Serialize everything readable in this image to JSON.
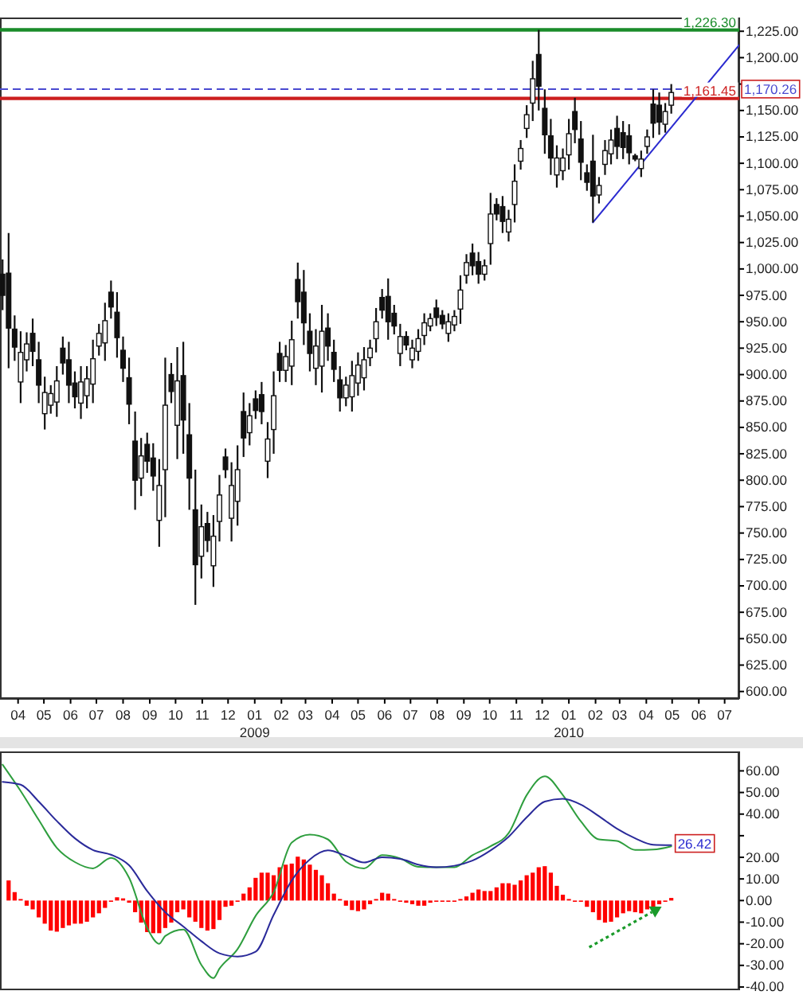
{
  "chart_data": [
    {
      "type": "candlestick",
      "color": "#111111",
      "x": [
        "2008-03-14",
        "2008-03-21",
        "2008-03-28",
        "2008-04-04",
        "2008-04-11",
        "2008-04-18",
        "2008-04-25",
        "2008-05-02",
        "2008-05-09",
        "2008-05-16",
        "2008-05-23",
        "2008-05-30",
        "2008-06-06",
        "2008-06-13",
        "2008-06-20",
        "2008-06-27",
        "2008-07-04",
        "2008-07-11",
        "2008-07-18",
        "2008-07-25",
        "2008-08-01",
        "2008-08-08",
        "2008-08-15",
        "2008-08-22",
        "2008-08-29",
        "2008-09-05",
        "2008-09-12",
        "2008-09-19",
        "2008-09-26",
        "2008-10-03",
        "2008-10-10",
        "2008-10-17",
        "2008-10-24",
        "2008-10-31",
        "2008-11-07",
        "2008-11-14",
        "2008-11-21",
        "2008-11-28",
        "2008-12-05",
        "2008-12-12",
        "2008-12-19",
        "2008-12-26",
        "2009-01-02",
        "2009-01-09",
        "2009-01-16",
        "2009-01-23",
        "2009-01-30",
        "2009-02-06",
        "2009-02-13",
        "2009-02-20",
        "2009-02-27",
        "2009-03-06",
        "2009-03-13",
        "2009-03-20",
        "2009-03-27",
        "2009-04-03",
        "2009-04-10",
        "2009-04-17",
        "2009-04-24",
        "2009-05-01",
        "2009-05-08",
        "2009-05-15",
        "2009-05-22",
        "2009-05-29",
        "2009-06-05",
        "2009-06-12",
        "2009-06-19",
        "2009-06-26",
        "2009-07-03",
        "2009-07-10",
        "2009-07-17",
        "2009-07-24",
        "2009-07-31",
        "2009-08-07",
        "2009-08-14",
        "2009-08-21",
        "2009-08-28",
        "2009-09-04",
        "2009-09-11",
        "2009-09-18",
        "2009-09-25",
        "2009-10-02",
        "2009-10-09",
        "2009-10-16",
        "2009-10-23",
        "2009-10-30",
        "2009-11-06",
        "2009-11-13",
        "2009-11-20",
        "2009-11-27",
        "2009-12-04",
        "2009-12-11",
        "2009-12-18",
        "2009-12-25",
        "2010-01-01",
        "2010-01-08",
        "2010-01-15",
        "2010-01-22",
        "2010-01-29",
        "2010-02-05",
        "2010-02-12",
        "2010-02-19",
        "2010-02-26",
        "2010-03-05",
        "2010-03-12",
        "2010-03-19",
        "2010-03-26",
        "2010-04-02",
        "2010-04-09",
        "2010-04-16",
        "2010-04-23",
        "2010-04-30"
      ],
      "ohlc": [
        [
          995,
          1009,
          961,
          975
        ],
        [
          996,
          1034,
          906,
          944
        ],
        [
          943,
          956,
          913,
          926
        ],
        [
          893,
          941,
          873,
          921
        ],
        [
          914,
          940,
          903,
          929
        ],
        [
          939,
          953,
          908,
          922
        ],
        [
          914,
          931,
          873,
          890
        ],
        [
          863,
          898,
          848,
          883
        ],
        [
          871,
          890,
          863,
          882
        ],
        [
          874,
          908,
          860,
          894
        ],
        [
          925,
          936,
          900,
          911
        ],
        [
          914,
          931,
          873,
          890
        ],
        [
          892,
          903,
          868,
          879
        ],
        [
          873,
          908,
          858,
          893
        ],
        [
          880,
          908,
          868,
          896
        ],
        [
          891,
          933,
          873,
          915
        ],
        [
          927,
          948,
          918,
          939
        ],
        [
          930,
          968,
          913,
          951
        ],
        [
          978,
          989,
          953,
          964
        ],
        [
          959,
          978,
          916,
          935
        ],
        [
          923,
          936,
          893,
          906
        ],
        [
          897,
          916,
          853,
          872
        ],
        [
          837,
          865,
          772,
          800
        ],
        [
          802,
          840,
          785,
          823
        ],
        [
          834,
          845,
          807,
          818
        ],
        [
          821,
          835,
          790,
          804
        ],
        [
          762,
          820,
          737,
          795
        ],
        [
          810,
          916,
          765,
          871
        ],
        [
          900,
          911,
          873,
          884
        ],
        [
          852,
          926,
          820,
          894
        ],
        [
          899,
          931,
          825,
          857
        ],
        [
          843,
          873,
          772,
          802
        ],
        [
          772,
          810,
          682,
          720
        ],
        [
          728,
          777,
          707,
          756
        ],
        [
          759,
          770,
          732,
          743
        ],
        [
          719,
          767,
          699,
          747
        ],
        [
          761,
          805,
          742,
          786
        ],
        [
          822,
          830,
          802,
          810
        ],
        [
          764,
          817,
          742,
          795
        ],
        [
          780,
          833,
          757,
          810
        ],
        [
          865,
          883,
          822,
          840
        ],
        [
          845,
          873,
          833,
          861
        ],
        [
          877,
          885,
          858,
          866
        ],
        [
          881,
          893,
          853,
          865
        ],
        [
          818,
          855,
          802,
          839
        ],
        [
          848,
          903,
          825,
          880
        ],
        [
          920,
          931,
          893,
          904
        ],
        [
          904,
          928,
          893,
          917
        ],
        [
          908,
          951,
          890,
          933
        ],
        [
          990,
          1006,
          953,
          969
        ],
        [
          978,
          999,
          928,
          949
        ],
        [
          941,
          958,
          903,
          920
        ],
        [
          906,
          943,
          890,
          927
        ],
        [
          908,
          966,
          883,
          941
        ],
        [
          944,
          958,
          913,
          927
        ],
        [
          921,
          933,
          893,
          905
        ],
        [
          895,
          908,
          865,
          878
        ],
        [
          878,
          898,
          870,
          890
        ],
        [
          879,
          913,
          865,
          899
        ],
        [
          892,
          921,
          880,
          909
        ],
        [
          897,
          926,
          885,
          914
        ],
        [
          916,
          933,
          908,
          925
        ],
        [
          934,
          963,
          921,
          950
        ],
        [
          973,
          981,
          953,
          961
        ],
        [
          974,
          991,
          933,
          950
        ],
        [
          958,
          966,
          938,
          946
        ],
        [
          920,
          948,
          908,
          936
        ],
        [
          936,
          941,
          923,
          928
        ],
        [
          914,
          933,
          906,
          925
        ],
        [
          922,
          943,
          913,
          934
        ],
        [
          937,
          958,
          928,
          949
        ],
        [
          946,
          958,
          941,
          953
        ],
        [
          963,
          971,
          946,
          954
        ],
        [
          956,
          961,
          943,
          948
        ],
        [
          939,
          958,
          931,
          950
        ],
        [
          947,
          961,
          941,
          955
        ],
        [
          962,
          994,
          948,
          980
        ],
        [
          994,
          1014,
          986,
          1006
        ],
        [
          1015,
          1024,
          994,
          1003
        ],
        [
          1007,
          1016,
          986,
          995
        ],
        [
          995,
          1009,
          989,
          1003
        ],
        [
          1024,
          1072,
          1004,
          1052
        ],
        [
          1061,
          1067,
          1046,
          1052
        ],
        [
          1059,
          1069,
          1034,
          1045
        ],
        [
          1035,
          1056,
          1026,
          1047
        ],
        [
          1061,
          1099,
          1044,
          1083
        ],
        [
          1102,
          1122,
          1094,
          1114
        ],
        [
          1133,
          1155,
          1124,
          1146
        ],
        [
          1157,
          1197,
          1140,
          1180
        ],
        [
          1203,
          1226.3,
          1150,
          1173
        ],
        [
          1152,
          1170,
          1109,
          1127
        ],
        [
          1126,
          1142,
          1089,
          1105
        ],
        [
          1089,
          1117,
          1077,
          1105
        ],
        [
          1093,
          1114,
          1084,
          1105
        ],
        [
          1108,
          1142,
          1094,
          1128
        ],
        [
          1149,
          1162,
          1119,
          1132
        ],
        [
          1123,
          1140,
          1084,
          1101
        ],
        [
          1091,
          1099,
          1074,
          1082
        ],
        [
          1102,
          1127,
          1044,
          1069
        ],
        [
          1070,
          1087,
          1062,
          1079
        ],
        [
          1099,
          1122,
          1089,
          1112
        ],
        [
          1109,
          1132,
          1099,
          1122
        ],
        [
          1133,
          1145,
          1104,
          1116
        ],
        [
          1129,
          1140,
          1104,
          1115
        ],
        [
          1126,
          1137,
          1099,
          1110
        ],
        [
          1107,
          1109,
          1102,
          1104
        ],
        [
          1095,
          1112,
          1087,
          1104
        ],
        [
          1116,
          1132,
          1109,
          1125
        ],
        [
          1156,
          1170,
          1124,
          1138
        ],
        [
          1155,
          1167,
          1127,
          1139
        ],
        [
          1137,
          1157,
          1129,
          1149
        ],
        [
          1155,
          1175,
          1147,
          1167
        ]
      ],
      "series": [
        {
          "type": "line",
          "color": "#2b2bd0",
          "x": [
            "2010-01-29",
            "2010-07-18"
          ],
          "values": [
            1044,
            1212
          ]
        }
      ],
      "xlim": [
        "2008-03-11",
        "2010-07-18"
      ],
      "xticks": [
        {
          "value": "2008-04-01",
          "label": "04"
        },
        {
          "value": "2008-05-01",
          "label": "05"
        },
        {
          "value": "2008-06-01",
          "label": "06"
        },
        {
          "value": "2008-07-01",
          "label": "07"
        },
        {
          "value": "2008-08-01",
          "label": "08"
        },
        {
          "value": "2008-09-01",
          "label": "09"
        },
        {
          "value": "2008-10-01",
          "label": "10"
        },
        {
          "value": "2008-11-01",
          "label": "11"
        },
        {
          "value": "2008-12-01",
          "label": "12"
        },
        {
          "value": "2009-01-01",
          "label": "01\n2009"
        },
        {
          "value": "2009-02-01",
          "label": "02"
        },
        {
          "value": "2009-03-01",
          "label": "03"
        },
        {
          "value": "2009-04-01",
          "label": "04"
        },
        {
          "value": "2009-05-01",
          "label": "05"
        },
        {
          "value": "2009-06-01",
          "label": "06"
        },
        {
          "value": "2009-07-01",
          "label": "07"
        },
        {
          "value": "2009-08-01",
          "label": "08"
        },
        {
          "value": "2009-09-01",
          "label": "09"
        },
        {
          "value": "2009-10-01",
          "label": "10"
        },
        {
          "value": "2009-11-01",
          "label": "11"
        },
        {
          "value": "2009-12-01",
          "label": "12"
        },
        {
          "value": "2010-01-01",
          "label": "01\n2010"
        },
        {
          "value": "2010-02-01",
          "label": "02"
        },
        {
          "value": "2010-03-01",
          "label": "03"
        },
        {
          "value": "2010-04-01",
          "label": "04"
        },
        {
          "value": "2010-05-01",
          "label": "05"
        },
        {
          "value": "2010-06-01",
          "label": "06"
        },
        {
          "value": "2010-07-01",
          "label": "07"
        }
      ],
      "ylim": [
        593,
        1238
      ],
      "yticks": [
        {
          "value": 600,
          "label": "600.00"
        },
        {
          "value": 625,
          "label": "625.00"
        },
        {
          "value": 650,
          "label": "650.00"
        },
        {
          "value": 675,
          "label": "675.00"
        },
        {
          "value": 700,
          "label": "700.00"
        },
        {
          "value": 725,
          "label": "725.00"
        },
        {
          "value": 750,
          "label": "750.00"
        },
        {
          "value": 775,
          "label": "775.00"
        },
        {
          "value": 800,
          "label": "800.00"
        },
        {
          "value": 825,
          "label": "825.00"
        },
        {
          "value": 850,
          "label": "850.00"
        },
        {
          "value": 875,
          "label": "875.00"
        },
        {
          "value": 900,
          "label": "900.00"
        },
        {
          "value": 925,
          "label": "925.00"
        },
        {
          "value": 950,
          "label": "950.00"
        },
        {
          "value": 975,
          "label": "975.00"
        },
        {
          "value": 1000,
          "label": "1,000.00"
        },
        {
          "value": 1025,
          "label": "1,025.00"
        },
        {
          "value": 1050,
          "label": "1,050.00"
        },
        {
          "value": 1075,
          "label": "1,075.00"
        },
        {
          "value": 1100,
          "label": "1,100.00"
        },
        {
          "value": 1125,
          "label": "1,125.00"
        },
        {
          "value": 1150,
          "label": "1,150.00"
        },
        {
          "value": 1175,
          "label": null
        },
        {
          "value": 1200,
          "label": "1,200.00"
        },
        {
          "value": 1225,
          "label": "1,225.00"
        }
      ],
      "ref_lines": [
        {
          "axis": "y",
          "value": 1226.3,
          "label": "1,226.30",
          "color": "#1a8c2a"
        },
        {
          "axis": "y",
          "value": 1161.45,
          "label": "1,161.45",
          "color": "#cc1f1f"
        },
        {
          "axis": "y",
          "value": 1170.26,
          "label": "1,170.26",
          "color": "#4a4ad0",
          "line_style": "dashed"
        }
      ]
    },
    {
      "type": "bar",
      "tick_labels": "y",
      "xlim": [
        "2008-03-11",
        "2010-07-18"
      ],
      "ylim": [
        -41.5,
        69
      ],
      "yticks": [
        {
          "value": -40,
          "label": "-40.00"
        },
        {
          "value": -30,
          "label": "-30.00"
        },
        {
          "value": -20,
          "label": "-20.00"
        },
        {
          "value": -10,
          "label": "-10.00"
        },
        {
          "value": 0,
          "label": "0.00"
        },
        {
          "value": 10,
          "label": "10.00"
        },
        {
          "value": 20,
          "label": "20.00"
        },
        {
          "value": 30,
          "label": null
        },
        {
          "value": 40,
          "label": "40.00"
        },
        {
          "value": 50,
          "label": "50.00"
        },
        {
          "value": 60,
          "label": "60.00"
        }
      ],
      "series": [
        {
          "type": "bar",
          "color": "#ff0000",
          "x": [
            "2008-03-21",
            "2008-03-28",
            "2008-04-04",
            "2008-04-11",
            "2008-04-18",
            "2008-04-25",
            "2008-05-02",
            "2008-05-09",
            "2008-05-16",
            "2008-05-23",
            "2008-05-30",
            "2008-06-06",
            "2008-06-13",
            "2008-06-20",
            "2008-06-27",
            "2008-07-04",
            "2008-07-11",
            "2008-07-18",
            "2008-07-25",
            "2008-08-01",
            "2008-08-08",
            "2008-08-15",
            "2008-08-22",
            "2008-08-29",
            "2008-09-05",
            "2008-09-12",
            "2008-09-19",
            "2008-09-26",
            "2008-10-03",
            "2008-10-10",
            "2008-10-17",
            "2008-10-24",
            "2008-10-31",
            "2008-11-07",
            "2008-11-14",
            "2008-11-21",
            "2008-11-28",
            "2008-12-05",
            "2008-12-12",
            "2008-12-19",
            "2008-12-26",
            "2009-01-02",
            "2009-01-09",
            "2009-01-16",
            "2009-01-23",
            "2009-01-30",
            "2009-02-06",
            "2009-02-13",
            "2009-02-20",
            "2009-02-27",
            "2009-03-06",
            "2009-03-13",
            "2009-03-20",
            "2009-03-27",
            "2009-04-03",
            "2009-04-10",
            "2009-04-17",
            "2009-04-24",
            "2009-05-01",
            "2009-05-08",
            "2009-05-15",
            "2009-05-22",
            "2009-05-29",
            "2009-06-05",
            "2009-06-12",
            "2009-06-19",
            "2009-06-26",
            "2009-07-03",
            "2009-07-10",
            "2009-07-17",
            "2009-07-24",
            "2009-07-31",
            "2009-08-07",
            "2009-08-14",
            "2009-08-21",
            "2009-08-28",
            "2009-09-04",
            "2009-09-11",
            "2009-09-18",
            "2009-09-25",
            "2009-10-02",
            "2009-10-09",
            "2009-10-16",
            "2009-10-23",
            "2009-10-30",
            "2009-11-06",
            "2009-11-13",
            "2009-11-20",
            "2009-11-27",
            "2009-12-04",
            "2009-12-11",
            "2009-12-18",
            "2009-12-25",
            "2010-01-01",
            "2010-01-08",
            "2010-01-15",
            "2010-01-22",
            "2010-01-29",
            "2010-02-05",
            "2010-02-12",
            "2010-02-19",
            "2010-02-26",
            "2010-03-05",
            "2010-03-12",
            "2010-03-19",
            "2010-03-26",
            "2010-04-02",
            "2010-04-09",
            "2010-04-16",
            "2010-04-23",
            "2010-04-30"
          ],
          "values": [
            9.3,
            3.9,
            0.7,
            -2.4,
            -4.1,
            -7.8,
            -10.7,
            -13.9,
            -14.4,
            -12.7,
            -11.5,
            -10.7,
            -10.7,
            -9.8,
            -7.8,
            -5.9,
            -3.4,
            -0.5,
            1.5,
            1,
            -1,
            -5.4,
            -10.2,
            -14.6,
            -15.1,
            -15.1,
            -12.7,
            -10.2,
            -5.4,
            -4.1,
            -7.8,
            -9.8,
            -12.7,
            -13.9,
            -13.2,
            -9,
            -2.9,
            -2.4,
            -0.5,
            3.2,
            6.1,
            10.5,
            12.9,
            12.9,
            11.7,
            15.4,
            16.6,
            17.1,
            20.3,
            19,
            16.6,
            14.2,
            11.7,
            8,
            3.2,
            0.7,
            -2.4,
            -4.4,
            -4.9,
            -4.1,
            -1.7,
            0.7,
            3.6,
            3.2,
            0.7,
            -0.5,
            -1,
            -1.7,
            -2.4,
            -2.4,
            -1,
            -0.5,
            -0.5,
            -0.5,
            -0.5,
            0.7,
            1.9,
            3.6,
            5.1,
            4.4,
            4.4,
            6.1,
            8,
            8,
            7.3,
            9.3,
            11.7,
            12.9,
            15.4,
            15.9,
            12.9,
            6.8,
            2.7,
            0.7,
            0,
            -0.5,
            -2.9,
            -5.4,
            -9,
            -10.2,
            -9.8,
            -7.8,
            -5.9,
            -4.9,
            -5.4,
            -5.9,
            -4.1,
            -2.9,
            -1.7,
            -0.5,
            1.2
          ]
        },
        {
          "type": "line",
          "color": "#2e9e3e",
          "x": [
            "2008-03-14",
            "2008-04-04",
            "2008-04-25",
            "2008-05-16",
            "2008-06-06",
            "2008-06-27",
            "2008-07-18",
            "2008-08-08",
            "2008-08-29",
            "2008-09-12",
            "2008-09-19",
            "2008-10-10",
            "2008-10-31",
            "2008-11-14",
            "2008-11-21",
            "2008-12-12",
            "2009-01-02",
            "2009-01-23",
            "2009-02-13",
            "2009-03-06",
            "2009-03-27",
            "2009-04-17",
            "2009-05-08",
            "2009-05-29",
            "2009-06-19",
            "2009-07-10",
            "2009-07-31",
            "2009-08-21",
            "2009-09-11",
            "2009-10-02",
            "2009-10-23",
            "2009-11-13",
            "2009-12-04",
            "2009-12-25",
            "2010-01-15",
            "2010-02-05",
            "2010-02-26",
            "2010-03-19",
            "2010-04-09",
            "2010-04-30"
          ],
          "values": [
            62.9,
            50.7,
            37.3,
            24.4,
            17.8,
            14.9,
            19.7,
            10.5,
            -12.7,
            -20,
            -16.4,
            -13.4,
            -29.8,
            -35.9,
            -31.5,
            -22.5,
            -7.1,
            3.9,
            26.8,
            30.5,
            28.3,
            18,
            14.9,
            21,
            19.5,
            15.6,
            15.4,
            15.4,
            21,
            25.1,
            31.2,
            48.8,
            57.5,
            48.8,
            36.6,
            28.3,
            27.6,
            23.4,
            23.6,
            25.1
          ]
        },
        {
          "type": "line",
          "color": "#2a2a9a",
          "x": [
            "2008-03-14",
            "2008-04-04",
            "2008-04-25",
            "2008-05-16",
            "2008-06-06",
            "2008-06-27",
            "2008-07-18",
            "2008-08-08",
            "2008-08-29",
            "2008-09-19",
            "2008-10-10",
            "2008-10-31",
            "2008-11-21",
            "2008-12-12",
            "2009-01-02",
            "2009-01-23",
            "2009-02-13",
            "2009-03-06",
            "2009-03-27",
            "2009-04-17",
            "2009-05-08",
            "2009-05-29",
            "2009-06-19",
            "2009-07-10",
            "2009-07-31",
            "2009-08-21",
            "2009-09-11",
            "2009-10-02",
            "2009-10-23",
            "2009-11-13",
            "2009-12-04",
            "2009-12-25",
            "2010-01-15",
            "2010-02-05",
            "2010-02-26",
            "2010-03-19",
            "2010-04-09",
            "2010-04-30"
          ],
          "values": [
            54.9,
            53.6,
            45.8,
            36.8,
            28.8,
            23.4,
            21.2,
            16.3,
            4.4,
            -5.4,
            -12,
            -18.8,
            -24.4,
            -25.9,
            -23.7,
            -6.6,
            9.3,
            19,
            23.2,
            20.7,
            17.6,
            20,
            19.3,
            16.6,
            15.4,
            16.1,
            18.5,
            23.2,
            29.5,
            38.5,
            45.8,
            47.1,
            44.4,
            39,
            33.2,
            28.8,
            25.8,
            25.6
          ]
        }
      ],
      "annotations": [
        {
          "text": "26.42",
          "x": "2010-04-30",
          "y": 26.42
        }
      ]
    }
  ]
}
